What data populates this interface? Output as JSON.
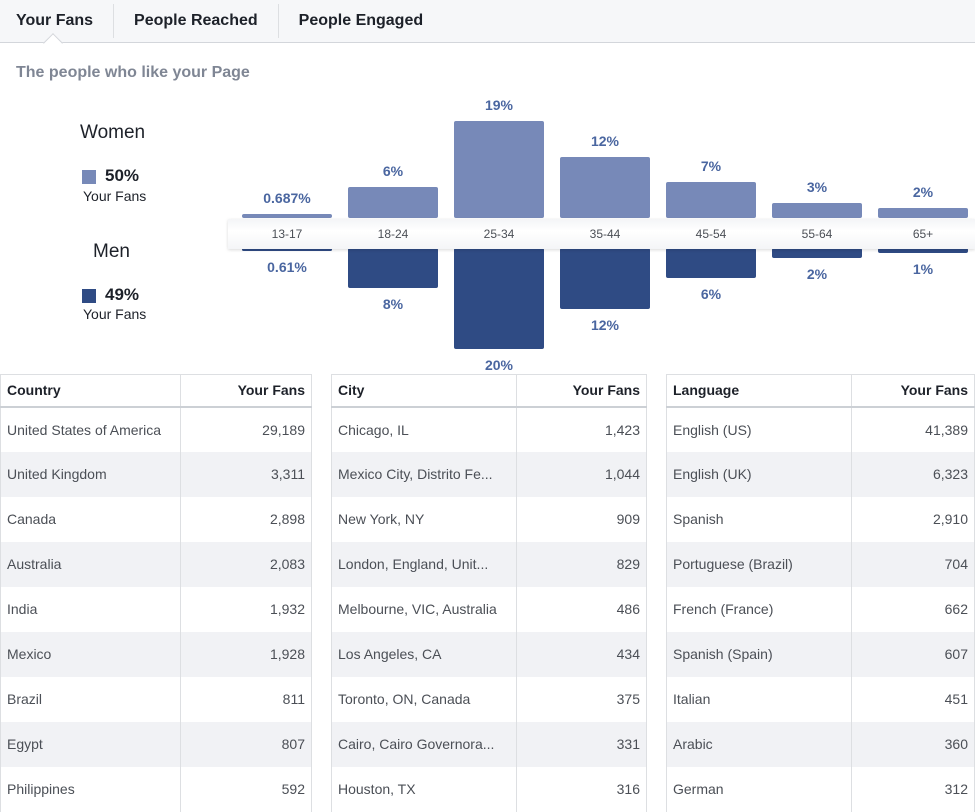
{
  "tabs": [
    "Your Fans",
    "People Reached",
    "People Engaged"
  ],
  "subtitle": "The people who like your Page",
  "legend": {
    "women_label": "Women",
    "women_pct": "50%",
    "women_sub": "Your Fans",
    "men_label": "Men",
    "men_pct": "49%",
    "men_sub": "Your Fans",
    "women_color": "#7789b8",
    "men_color": "#2f4b84"
  },
  "chart_data": {
    "type": "bar",
    "categories": [
      "13-17",
      "18-24",
      "25-34",
      "35-44",
      "45-54",
      "55-64",
      "65+"
    ],
    "series": [
      {
        "name": "Women",
        "values": [
          0.687,
          6,
          19,
          12,
          7,
          3,
          2
        ],
        "labels": [
          "0.687%",
          "6%",
          "19%",
          "12%",
          "7%",
          "3%",
          "2%"
        ]
      },
      {
        "name": "Men",
        "values": [
          0.61,
          8,
          20,
          12,
          6,
          2,
          1
        ],
        "labels": [
          "0.61%",
          "8%",
          "20%",
          "12%",
          "6%",
          "2%",
          "1%"
        ]
      }
    ]
  },
  "tables": [
    {
      "headers": [
        "Country",
        "Your Fans"
      ],
      "rows": [
        [
          "United States of America",
          "29,189"
        ],
        [
          "United Kingdom",
          "3,311"
        ],
        [
          "Canada",
          "2,898"
        ],
        [
          "Australia",
          "2,083"
        ],
        [
          "India",
          "1,932"
        ],
        [
          "Mexico",
          "1,928"
        ],
        [
          "Brazil",
          "811"
        ],
        [
          "Egypt",
          "807"
        ],
        [
          "Philippines",
          "592"
        ]
      ]
    },
    {
      "headers": [
        "City",
        "Your Fans"
      ],
      "rows": [
        [
          "Chicago, IL",
          "1,423"
        ],
        [
          "Mexico City, Distrito Fe...",
          "1,044"
        ],
        [
          "New York, NY",
          "909"
        ],
        [
          "London, England, Unit...",
          "829"
        ],
        [
          "Melbourne, VIC, Australia",
          "486"
        ],
        [
          "Los Angeles, CA",
          "434"
        ],
        [
          "Toronto, ON, Canada",
          "375"
        ],
        [
          "Cairo, Cairo Governora...",
          "331"
        ],
        [
          "Houston, TX",
          "316"
        ]
      ]
    },
    {
      "headers": [
        "Language",
        "Your Fans"
      ],
      "rows": [
        [
          "English (US)",
          "41,389"
        ],
        [
          "English (UK)",
          "6,323"
        ],
        [
          "Spanish",
          "2,910"
        ],
        [
          "Portuguese (Brazil)",
          "704"
        ],
        [
          "French (France)",
          "662"
        ],
        [
          "Spanish (Spain)",
          "607"
        ],
        [
          "Italian",
          "451"
        ],
        [
          "Arabic",
          "360"
        ],
        [
          "German",
          "312"
        ]
      ]
    }
  ]
}
